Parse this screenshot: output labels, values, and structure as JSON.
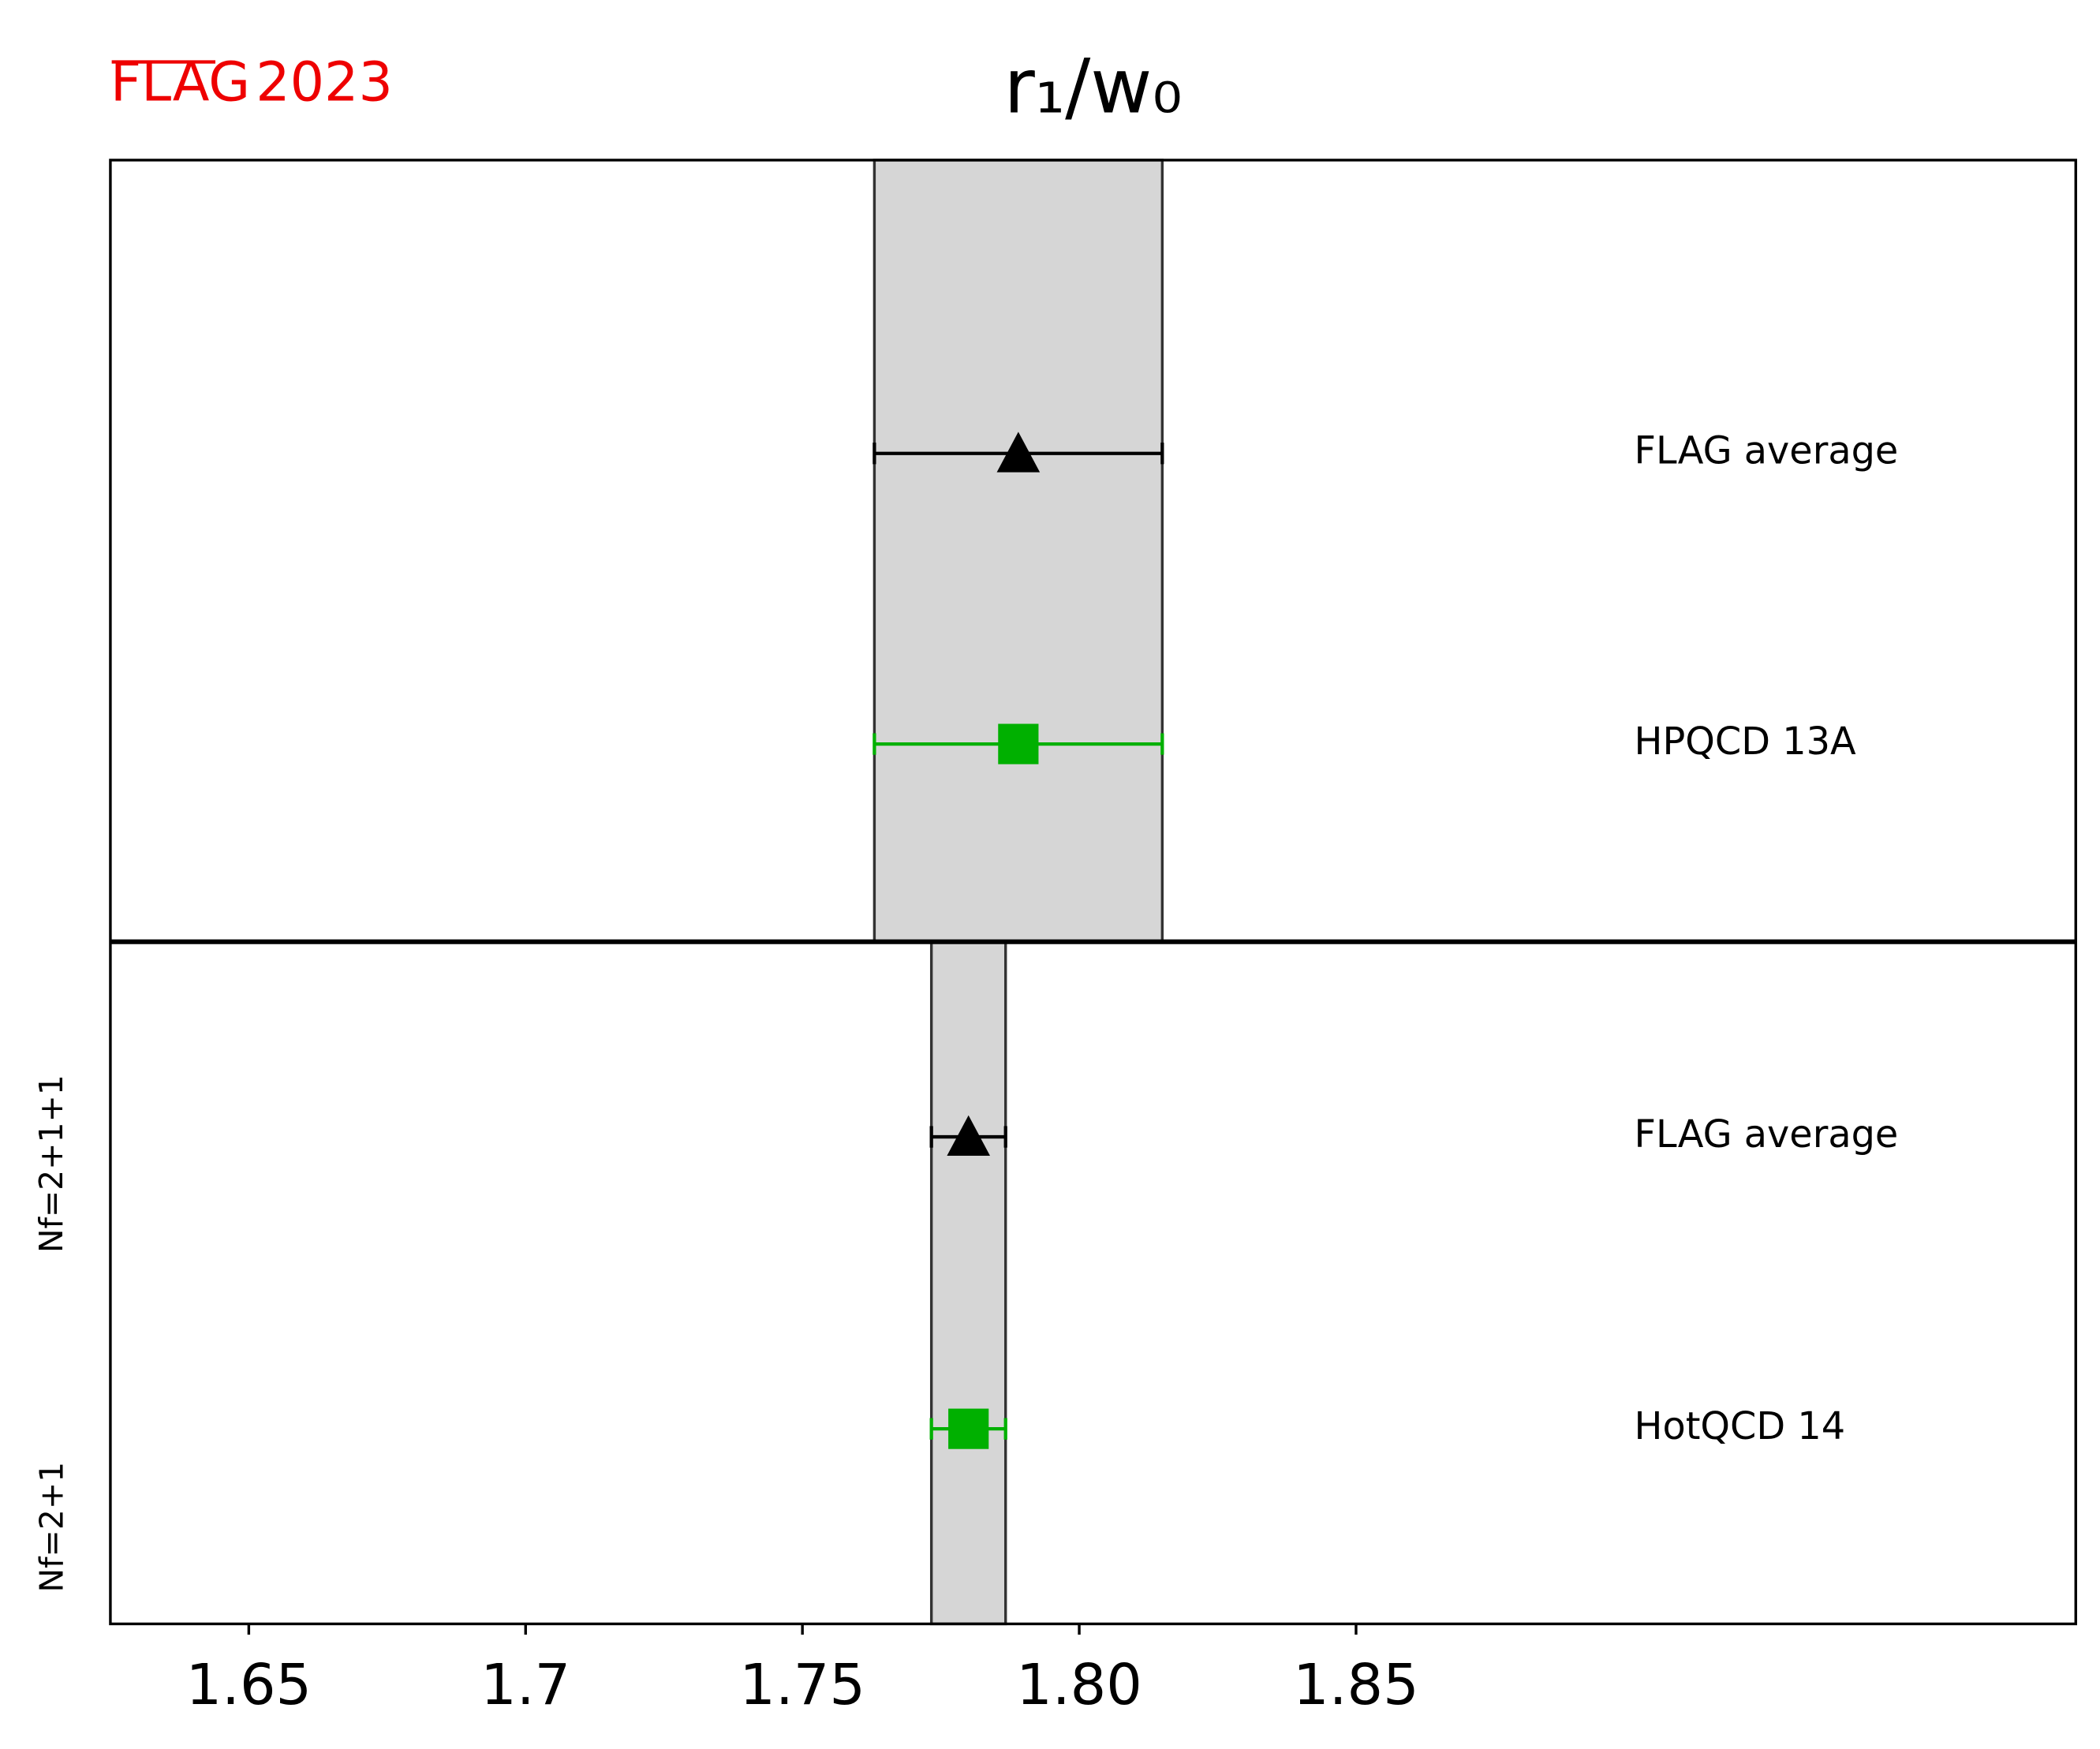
{
  "chart_data": {
    "type": "forest",
    "title": "r₁/w₀",
    "logo": [
      "FLAG",
      "2023"
    ],
    "xlim": [
      1.625,
      1.98
    ],
    "xticks": [
      1.65,
      1.7,
      {
        "value": 1.75,
        "label": "1.75"
      },
      {
        "value": 1.8,
        "label": "1.80"
      },
      1.85
    ],
    "panels": [
      {
        "label": "Nf=2+1+1",
        "entries": [
          {
            "name": "FLAG average",
            "value": 1.789,
            "error": 0.026,
            "color": "#000000",
            "marker": "triangle"
          },
          {
            "name": "HPQCD 13A",
            "value": 1.789,
            "error": 0.026,
            "color": "#00b000",
            "marker": "square"
          }
        ]
      },
      {
        "label": "Nf=2+1",
        "entries": [
          {
            "name": "FLAG average",
            "value": 1.78,
            "error": 0.0067,
            "color": "#000000",
            "marker": "triangle"
          },
          {
            "name": "HotQCD 14",
            "value": 1.78,
            "error": 0.0067,
            "color": "#00b000",
            "marker": "square"
          }
        ]
      }
    ]
  }
}
